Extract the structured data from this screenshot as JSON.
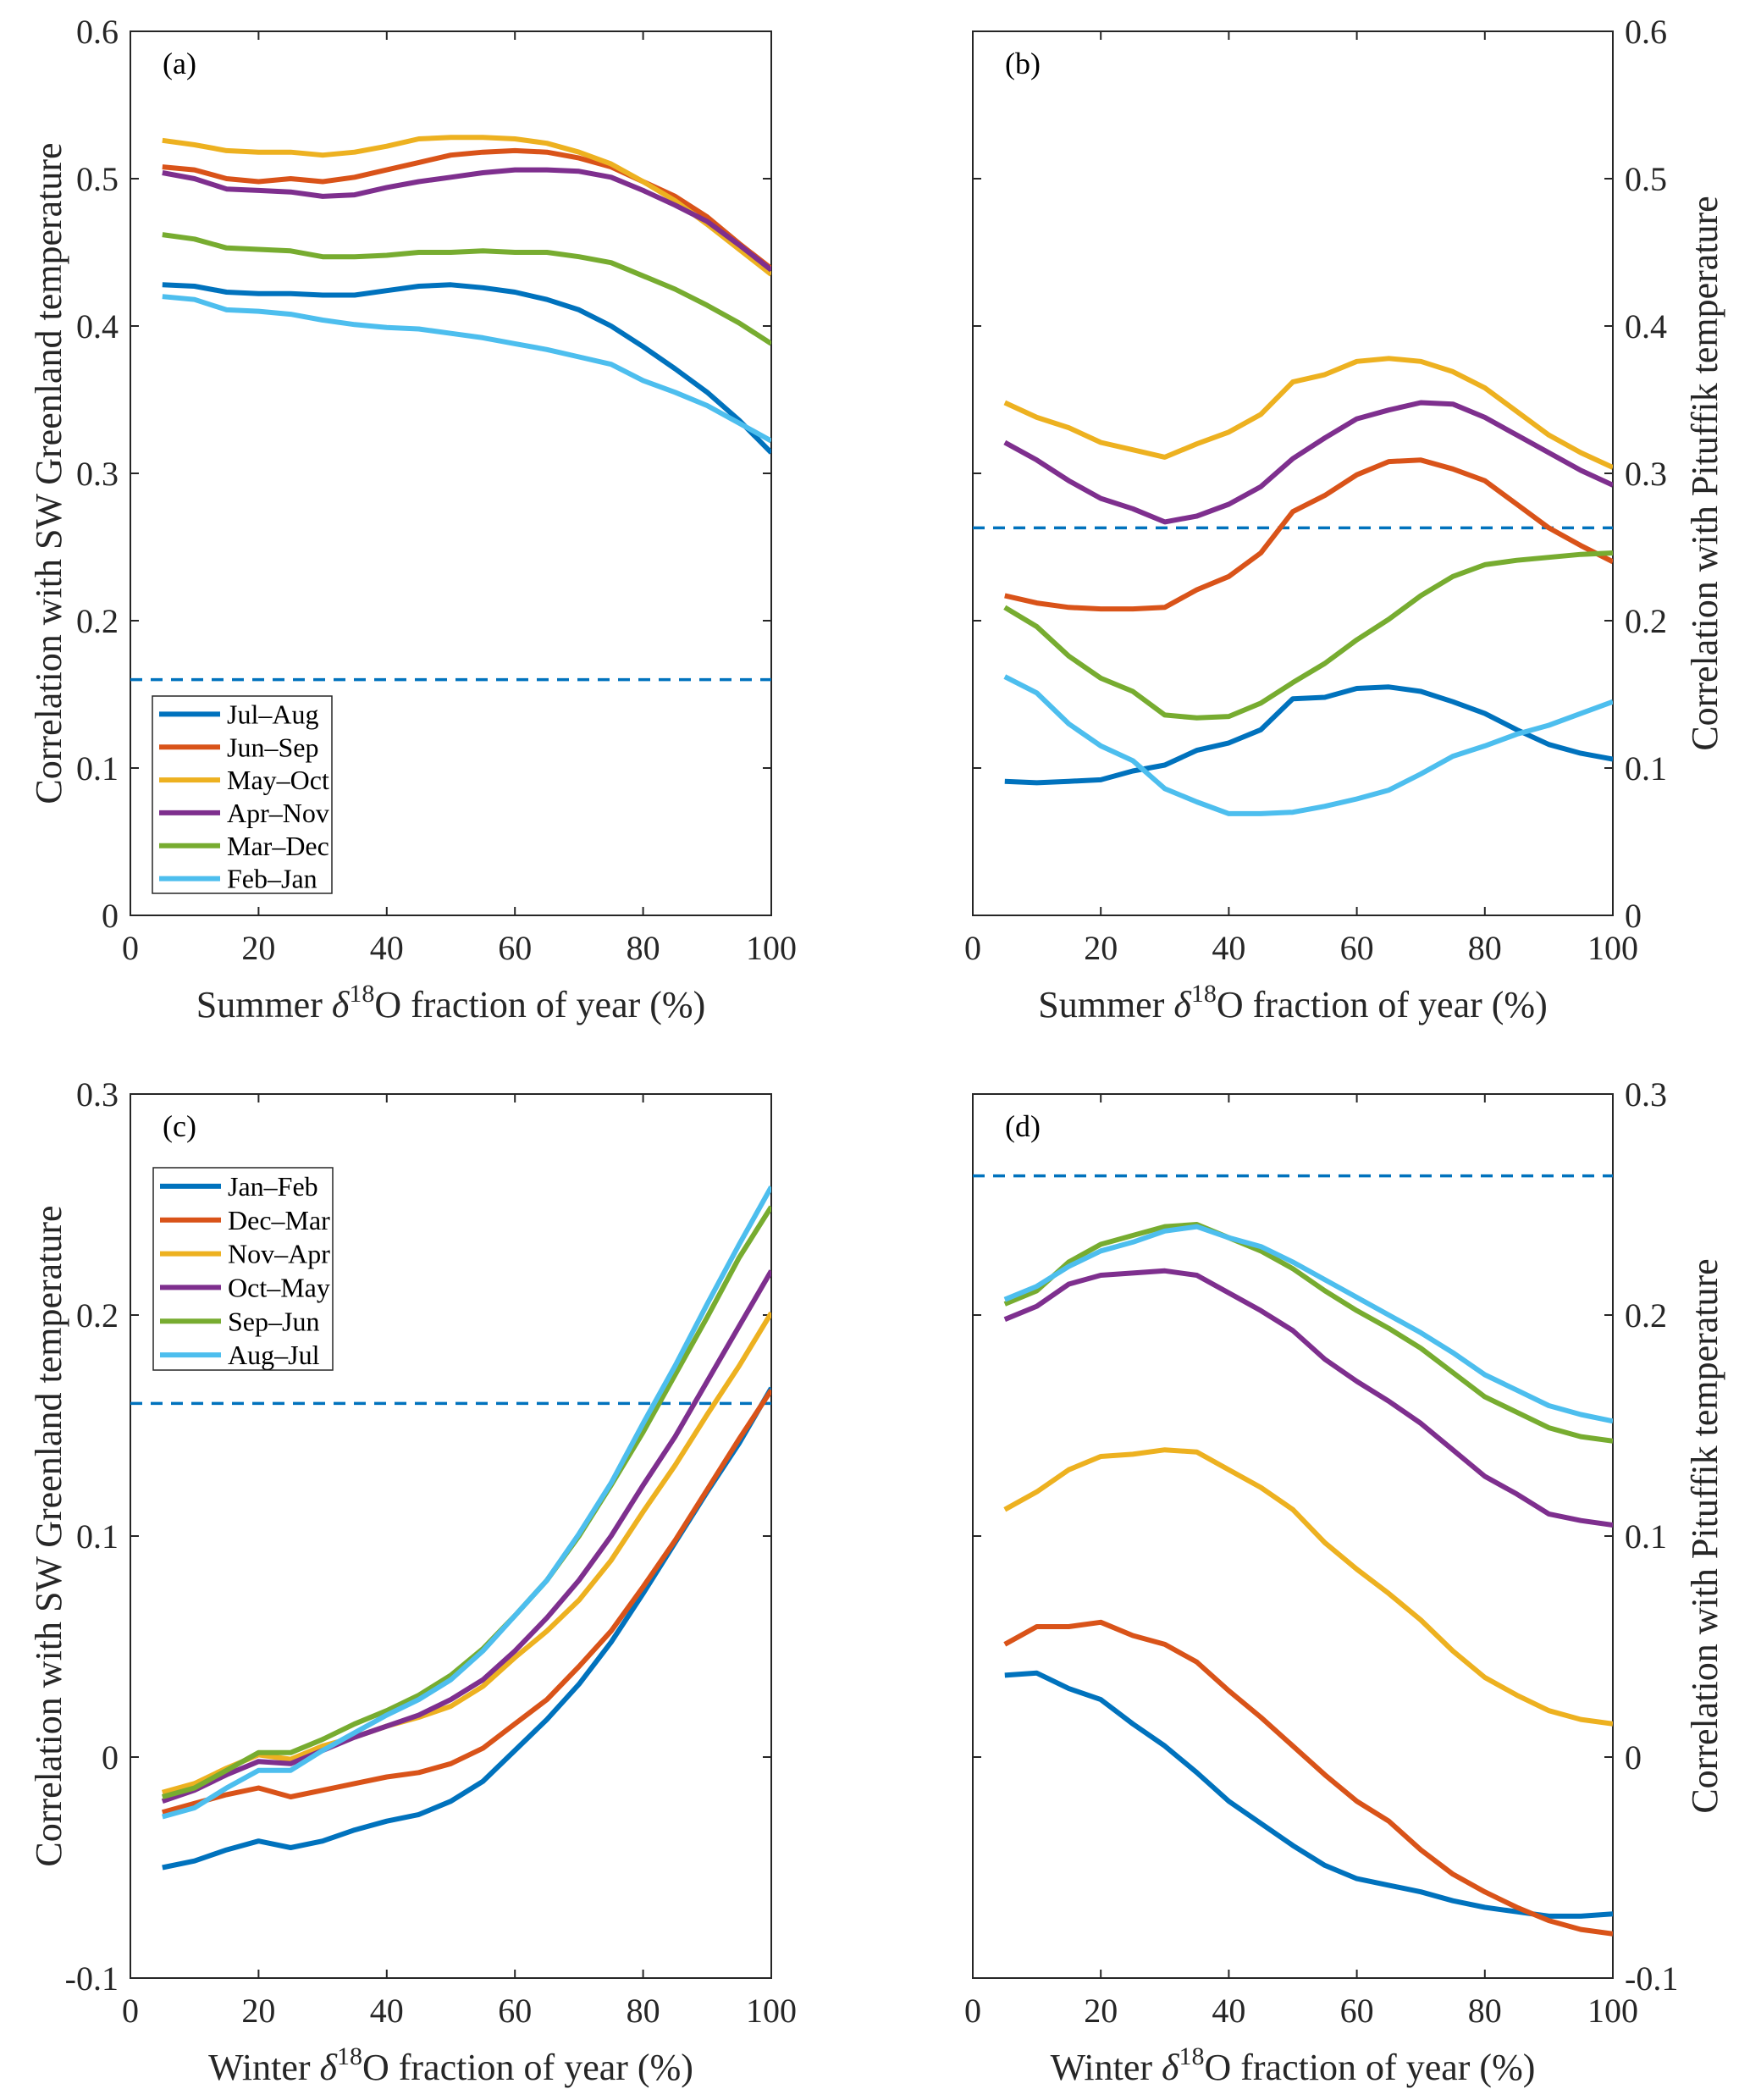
{
  "figure": {
    "colors": {
      "c1": "#0072BD",
      "c2": "#D95319",
      "c3": "#EDB120",
      "c4": "#7E2F8E",
      "c5": "#77AC30",
      "c6": "#4DBEEE",
      "threshold": "#0072BD",
      "axis": "#262626"
    }
  },
  "chart_data": [
    {
      "panel": "(a)",
      "type": "line",
      "xlabel": "Summer δ18O fraction of year (%)",
      "xlabel_parts": {
        "pre": "Summer ",
        "delta": "δ",
        "sup": "18",
        "post": "O fraction of year (%)"
      },
      "ylabel": "Correlation with SW Greenland temperature",
      "yaxis_side": "left",
      "xlim": [
        0,
        100
      ],
      "ylim": [
        0,
        0.6
      ],
      "xticks": [
        0,
        20,
        40,
        60,
        80,
        100
      ],
      "yticks": [
        0,
        0.1,
        0.2,
        0.3,
        0.4,
        0.5,
        0.6
      ],
      "ytick_labels": [
        "0",
        "0.1",
        "0.2",
        "0.3",
        "0.4",
        "0.5",
        "0.6"
      ],
      "show_ytick_labels": true,
      "threshold": 0.16,
      "legend": "top-left-lower",
      "x": [
        5,
        10,
        15,
        20,
        25,
        30,
        35,
        40,
        45,
        50,
        55,
        60,
        65,
        70,
        75,
        80,
        85,
        90,
        95,
        100
      ],
      "series": [
        {
          "name": "Jul–Aug",
          "color_key": "c1",
          "values": [
            0.428,
            0.427,
            0.423,
            0.422,
            0.422,
            0.421,
            0.421,
            0.424,
            0.427,
            0.428,
            0.426,
            0.423,
            0.418,
            0.411,
            0.4,
            0.386,
            0.371,
            0.355,
            0.336,
            0.314
          ]
        },
        {
          "name": "Jun–Sep",
          "color_key": "c2",
          "values": [
            0.508,
            0.506,
            0.5,
            0.498,
            0.5,
            0.498,
            0.501,
            0.506,
            0.511,
            0.516,
            0.518,
            0.519,
            0.518,
            0.514,
            0.508,
            0.498,
            0.488,
            0.474,
            0.456,
            0.439
          ]
        },
        {
          "name": "May–Oct",
          "color_key": "c3",
          "values": [
            0.526,
            0.523,
            0.519,
            0.518,
            0.518,
            0.516,
            0.518,
            0.522,
            0.527,
            0.528,
            0.528,
            0.527,
            0.524,
            0.518,
            0.51,
            0.498,
            0.485,
            0.469,
            0.452,
            0.435
          ]
        },
        {
          "name": "Apr–Nov",
          "color_key": "c4",
          "values": [
            0.504,
            0.5,
            0.493,
            0.492,
            0.491,
            0.488,
            0.489,
            0.494,
            0.498,
            0.501,
            0.504,
            0.506,
            0.506,
            0.505,
            0.501,
            0.492,
            0.482,
            0.471,
            0.455,
            0.438
          ]
        },
        {
          "name": "Mar–Dec",
          "color_key": "c5",
          "values": [
            0.462,
            0.459,
            0.453,
            0.452,
            0.451,
            0.447,
            0.447,
            0.448,
            0.45,
            0.45,
            0.451,
            0.45,
            0.45,
            0.447,
            0.443,
            0.434,
            0.425,
            0.414,
            0.402,
            0.388
          ]
        },
        {
          "name": "Feb–Jan",
          "color_key": "c6",
          "values": [
            0.42,
            0.418,
            0.411,
            0.41,
            0.408,
            0.404,
            0.401,
            0.399,
            0.398,
            0.395,
            0.392,
            0.388,
            0.384,
            0.379,
            0.374,
            0.363,
            0.355,
            0.346,
            0.334,
            0.322
          ]
        }
      ]
    },
    {
      "panel": "(b)",
      "type": "line",
      "xlabel": "Summer δ18O fraction of year (%)",
      "xlabel_parts": {
        "pre": "Summer ",
        "delta": "δ",
        "sup": "18",
        "post": "O fraction of year (%)"
      },
      "ylabel": "Correlation with Pituffik temperature",
      "yaxis_side": "right",
      "xlim": [
        0,
        100
      ],
      "ylim": [
        0,
        0.6
      ],
      "xticks": [
        0,
        20,
        40,
        60,
        80,
        100
      ],
      "yticks": [
        0,
        0.1,
        0.2,
        0.3,
        0.4,
        0.5,
        0.6
      ],
      "ytick_labels": [
        "0",
        "0.1",
        "0.2",
        "0.3",
        "0.4",
        "0.5",
        "0.6"
      ],
      "show_ytick_labels": true,
      "threshold": 0.263,
      "legend": "none",
      "x": [
        5,
        10,
        15,
        20,
        25,
        30,
        35,
        40,
        45,
        50,
        55,
        60,
        65,
        70,
        75,
        80,
        85,
        90,
        95,
        100
      ],
      "series": [
        {
          "name": "Jul–Aug",
          "color_key": "c1",
          "values": [
            0.091,
            0.09,
            0.091,
            0.092,
            0.098,
            0.102,
            0.112,
            0.117,
            0.126,
            0.147,
            0.148,
            0.154,
            0.155,
            0.152,
            0.145,
            0.137,
            0.126,
            0.116,
            0.11,
            0.106
          ]
        },
        {
          "name": "Jun–Sep",
          "color_key": "c2",
          "values": [
            0.217,
            0.212,
            0.209,
            0.208,
            0.208,
            0.209,
            0.221,
            0.23,
            0.246,
            0.274,
            0.285,
            0.299,
            0.308,
            0.309,
            0.303,
            0.295,
            0.279,
            0.263,
            0.251,
            0.24
          ]
        },
        {
          "name": "May–Oct",
          "color_key": "c3",
          "values": [
            0.348,
            0.338,
            0.331,
            0.321,
            0.316,
            0.311,
            0.32,
            0.328,
            0.34,
            0.362,
            0.367,
            0.376,
            0.378,
            0.376,
            0.369,
            0.358,
            0.342,
            0.326,
            0.314,
            0.304
          ]
        },
        {
          "name": "Apr–Nov",
          "color_key": "c4",
          "values": [
            0.321,
            0.309,
            0.295,
            0.283,
            0.276,
            0.267,
            0.271,
            0.279,
            0.291,
            0.31,
            0.324,
            0.337,
            0.343,
            0.348,
            0.347,
            0.338,
            0.326,
            0.314,
            0.302,
            0.292
          ]
        },
        {
          "name": "Mar–Dec",
          "color_key": "c5",
          "values": [
            0.209,
            0.196,
            0.176,
            0.161,
            0.152,
            0.136,
            0.134,
            0.135,
            0.144,
            0.158,
            0.171,
            0.187,
            0.201,
            0.217,
            0.23,
            0.238,
            0.241,
            0.243,
            0.245,
            0.246
          ]
        },
        {
          "name": "Feb–Jan",
          "color_key": "c6",
          "values": [
            0.162,
            0.151,
            0.13,
            0.115,
            0.105,
            0.086,
            0.077,
            0.069,
            0.069,
            0.07,
            0.074,
            0.079,
            0.085,
            0.096,
            0.108,
            0.115,
            0.123,
            0.129,
            0.137,
            0.145
          ]
        }
      ]
    },
    {
      "panel": "(c)",
      "type": "line",
      "xlabel": "Winter δ18O fraction of year (%)",
      "xlabel_parts": {
        "pre": "Winter ",
        "delta": "δ",
        "sup": "18",
        "post": "O fraction of year (%)"
      },
      "ylabel": "Correlation with SW Greenland temperature",
      "yaxis_side": "left",
      "xlim": [
        0,
        100
      ],
      "ylim": [
        -0.1,
        0.3
      ],
      "xticks": [
        0,
        20,
        40,
        60,
        80,
        100
      ],
      "yticks": [
        -0.1,
        0,
        0.1,
        0.2,
        0.3
      ],
      "ytick_labels": [
        "-0.1",
        "0",
        "0.1",
        "0.2",
        "0.3"
      ],
      "show_ytick_labels": true,
      "threshold": 0.16,
      "legend": "top-left",
      "x": [
        5,
        10,
        15,
        20,
        25,
        30,
        35,
        40,
        45,
        50,
        55,
        60,
        65,
        70,
        75,
        80,
        85,
        90,
        95,
        100
      ],
      "series": [
        {
          "name": "Jan–Feb",
          "color_key": "c1",
          "values": [
            -0.05,
            -0.047,
            -0.042,
            -0.038,
            -0.041,
            -0.038,
            -0.033,
            -0.029,
            -0.026,
            -0.02,
            -0.011,
            0.003,
            0.017,
            0.033,
            0.052,
            0.074,
            0.097,
            0.12,
            0.142,
            0.167
          ]
        },
        {
          "name": "Dec–Mar",
          "color_key": "c2",
          "values": [
            -0.025,
            -0.021,
            -0.017,
            -0.014,
            -0.018,
            -0.015,
            -0.012,
            -0.009,
            -0.007,
            -0.003,
            0.004,
            0.015,
            0.026,
            0.041,
            0.057,
            0.077,
            0.098,
            0.121,
            0.144,
            0.166
          ]
        },
        {
          "name": "Nov–Apr",
          "color_key": "c3",
          "values": [
            -0.016,
            -0.012,
            -0.005,
            0.001,
            -0.001,
            0.005,
            0.009,
            0.014,
            0.018,
            0.023,
            0.032,
            0.045,
            0.057,
            0.071,
            0.089,
            0.111,
            0.132,
            0.155,
            0.177,
            0.201
          ]
        },
        {
          "name": "Oct–May",
          "color_key": "c4",
          "values": [
            -0.02,
            -0.015,
            -0.008,
            -0.002,
            -0.003,
            0.003,
            0.009,
            0.014,
            0.019,
            0.026,
            0.035,
            0.048,
            0.063,
            0.08,
            0.1,
            0.123,
            0.145,
            0.17,
            0.195,
            0.22
          ]
        },
        {
          "name": "Sep–Jun",
          "color_key": "c5",
          "values": [
            -0.018,
            -0.014,
            -0.006,
            0.002,
            0.002,
            0.008,
            0.015,
            0.021,
            0.028,
            0.037,
            0.049,
            0.064,
            0.08,
            0.1,
            0.123,
            0.147,
            0.173,
            0.199,
            0.226,
            0.249
          ]
        },
        {
          "name": "Aug–Jul",
          "color_key": "c6",
          "values": [
            -0.027,
            -0.023,
            -0.014,
            -0.006,
            -0.006,
            0.003,
            0.011,
            0.019,
            0.026,
            0.035,
            0.048,
            0.064,
            0.08,
            0.101,
            0.124,
            0.151,
            0.177,
            0.205,
            0.232,
            0.258
          ]
        }
      ]
    },
    {
      "panel": "(d)",
      "type": "line",
      "xlabel": "Winter δ18O fraction of year (%)",
      "xlabel_parts": {
        "pre": "Winter ",
        "delta": "δ",
        "sup": "18",
        "post": "O fraction of year (%)"
      },
      "ylabel": "Correlation with Pituffik temperature",
      "yaxis_side": "right",
      "xlim": [
        0,
        100
      ],
      "ylim": [
        -0.1,
        0.3
      ],
      "xticks": [
        0,
        20,
        40,
        60,
        80,
        100
      ],
      "yticks": [
        -0.1,
        0,
        0.1,
        0.2,
        0.3
      ],
      "ytick_labels": [
        "-0.1",
        "0",
        "0.1",
        "0.2",
        "0.3"
      ],
      "show_ytick_labels": true,
      "threshold": 0.263,
      "legend": "none",
      "x": [
        5,
        10,
        15,
        20,
        25,
        30,
        35,
        40,
        45,
        50,
        55,
        60,
        65,
        70,
        75,
        80,
        85,
        90,
        95,
        100
      ],
      "series": [
        {
          "name": "Jan–Feb",
          "color_key": "c1",
          "values": [
            0.037,
            0.038,
            0.031,
            0.026,
            0.015,
            0.005,
            -0.007,
            -0.02,
            -0.03,
            -0.04,
            -0.049,
            -0.055,
            -0.058,
            -0.061,
            -0.065,
            -0.068,
            -0.07,
            -0.072,
            -0.072,
            -0.071
          ]
        },
        {
          "name": "Dec–Mar",
          "color_key": "c2",
          "values": [
            0.051,
            0.059,
            0.059,
            0.061,
            0.055,
            0.051,
            0.043,
            0.03,
            0.018,
            0.005,
            -0.008,
            -0.02,
            -0.029,
            -0.042,
            -0.053,
            -0.061,
            -0.068,
            -0.074,
            -0.078,
            -0.08
          ]
        },
        {
          "name": "Nov–Apr",
          "color_key": "c3",
          "values": [
            0.112,
            0.12,
            0.13,
            0.136,
            0.137,
            0.139,
            0.138,
            0.13,
            0.122,
            0.112,
            0.097,
            0.085,
            0.074,
            0.062,
            0.048,
            0.036,
            0.028,
            0.021,
            0.017,
            0.015
          ]
        },
        {
          "name": "Oct–May",
          "color_key": "c4",
          "values": [
            0.198,
            0.204,
            0.214,
            0.218,
            0.219,
            0.22,
            0.218,
            0.21,
            0.202,
            0.193,
            0.18,
            0.17,
            0.161,
            0.151,
            0.139,
            0.127,
            0.119,
            0.11,
            0.107,
            0.105
          ]
        },
        {
          "name": "Sep–Jun",
          "color_key": "c5",
          "values": [
            0.205,
            0.211,
            0.224,
            0.232,
            0.236,
            0.24,
            0.241,
            0.235,
            0.229,
            0.221,
            0.211,
            0.202,
            0.194,
            0.185,
            0.174,
            0.163,
            0.156,
            0.149,
            0.145,
            0.143
          ]
        },
        {
          "name": "Aug–Jul",
          "color_key": "c6",
          "values": [
            0.207,
            0.213,
            0.222,
            0.229,
            0.233,
            0.238,
            0.24,
            0.235,
            0.231,
            0.224,
            0.216,
            0.208,
            0.2,
            0.192,
            0.183,
            0.173,
            0.166,
            0.159,
            0.155,
            0.152
          ]
        }
      ]
    }
  ]
}
